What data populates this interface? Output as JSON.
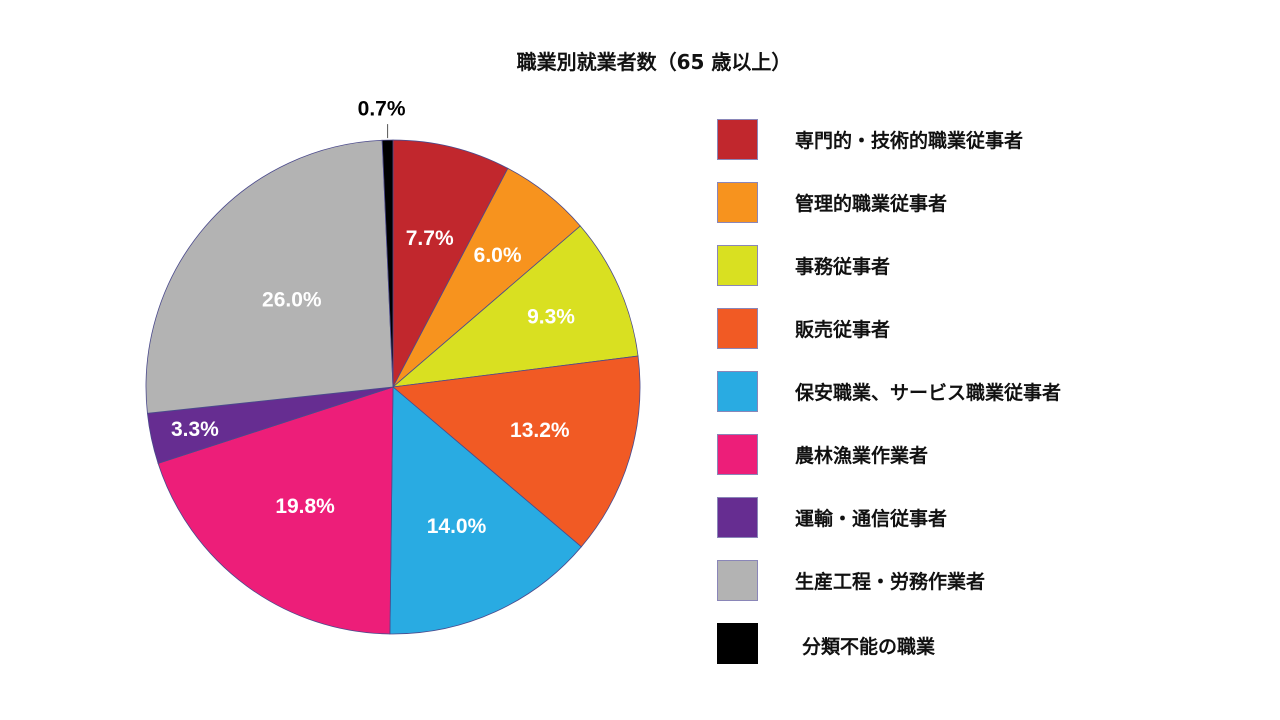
{
  "chart_data": {
    "type": "pie",
    "title": "職業別就業者数（65 歳以上）",
    "start_angle_deg": 0,
    "direction": "clockwise",
    "legend_position": "right",
    "slices": [
      {
        "label": "専門的・技術的職業従事者",
        "value": 7.7,
        "value_label": "7.7%",
        "color": "#c1272d"
      },
      {
        "label": "管理的職業従事者",
        "value": 6.0,
        "value_label": "6.0%",
        "color": "#f7931e"
      },
      {
        "label": "事務従事者",
        "value": 9.3,
        "value_label": "9.3%",
        "color": "#d9e021"
      },
      {
        "label": "販売従事者",
        "value": 13.2,
        "value_label": "13.2%",
        "color": "#f15a24"
      },
      {
        "label": "保安職業、サービス職業従事者",
        "value": 14.0,
        "value_label": "14.0%",
        "color": "#29abe2"
      },
      {
        "label": "農林漁業作業者",
        "value": 19.8,
        "value_label": "19.8%",
        "color": "#ed1e79"
      },
      {
        "label": "運輸・通信従事者",
        "value": 3.3,
        "value_label": "3.3%",
        "color": "#662d91"
      },
      {
        "label": "生産工程・労務作業者",
        "value": 26.0,
        "value_label": "26.0%",
        "color": "#b3b3b3"
      },
      {
        "label": "分類不能の職業",
        "value": 0.7,
        "value_label": "0.7%",
        "color": "#000000"
      }
    ]
  },
  "title": "職業別就業者数（65 歳以上）",
  "legend": {
    "items": [
      {
        "label": "専門的・技術的職業従事者",
        "color": "#c1272d"
      },
      {
        "label": "管理的職業従事者",
        "color": "#f7931e"
      },
      {
        "label": "事務従事者",
        "color": "#d9e021"
      },
      {
        "label": "販売従事者",
        "color": "#f15a24"
      },
      {
        "label": "保安職業、サービス職業従事者",
        "color": "#29abe2"
      },
      {
        "label": "農林漁業作業者",
        "color": "#ed1e79"
      },
      {
        "label": "運輸・通信従事者",
        "color": "#662d91"
      },
      {
        "label": "生産工程・労務作業者",
        "color": "#b3b3b3"
      },
      {
        "label": "分類不能の職業",
        "color": "#000000"
      }
    ]
  }
}
